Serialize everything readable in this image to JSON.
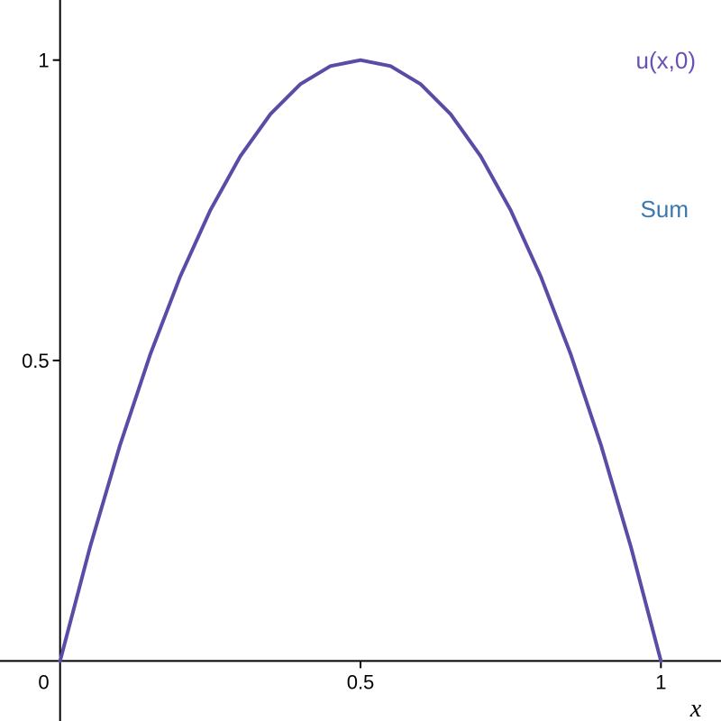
{
  "chart_data": {
    "type": "line",
    "title": "",
    "xlabel": "x",
    "ylabel": "",
    "xlim": [
      -0.1,
      1.1
    ],
    "ylim": [
      -0.1,
      1.1
    ],
    "x_ticks": [
      {
        "value": 0,
        "label": "0"
      },
      {
        "value": 0.5,
        "label": "0.5"
      },
      {
        "value": 1,
        "label": "1"
      }
    ],
    "y_ticks": [
      {
        "value": 0.5,
        "label": "0.5"
      },
      {
        "value": 1,
        "label": "1"
      }
    ],
    "grid": false,
    "series": [
      {
        "name": "u(x,0)",
        "color": "#5b4ba6",
        "formula": "4x(1-x)",
        "x": [
          0,
          0.05,
          0.1,
          0.15,
          0.2,
          0.25,
          0.3,
          0.35,
          0.4,
          0.45,
          0.5,
          0.55,
          0.6,
          0.65,
          0.7,
          0.75,
          0.8,
          0.85,
          0.9,
          0.95,
          1
        ],
        "values": [
          0,
          0.19,
          0.36,
          0.51,
          0.64,
          0.75,
          0.84,
          0.91,
          0.96,
          0.99,
          1,
          0.99,
          0.96,
          0.91,
          0.84,
          0.75,
          0.64,
          0.51,
          0.36,
          0.19,
          0
        ]
      }
    ],
    "legend": [
      {
        "label": "u(x,0)",
        "color": "#6a4fb5"
      },
      {
        "label": "Sum",
        "color": "#3a78b0"
      }
    ],
    "legend_position": "top-right"
  }
}
